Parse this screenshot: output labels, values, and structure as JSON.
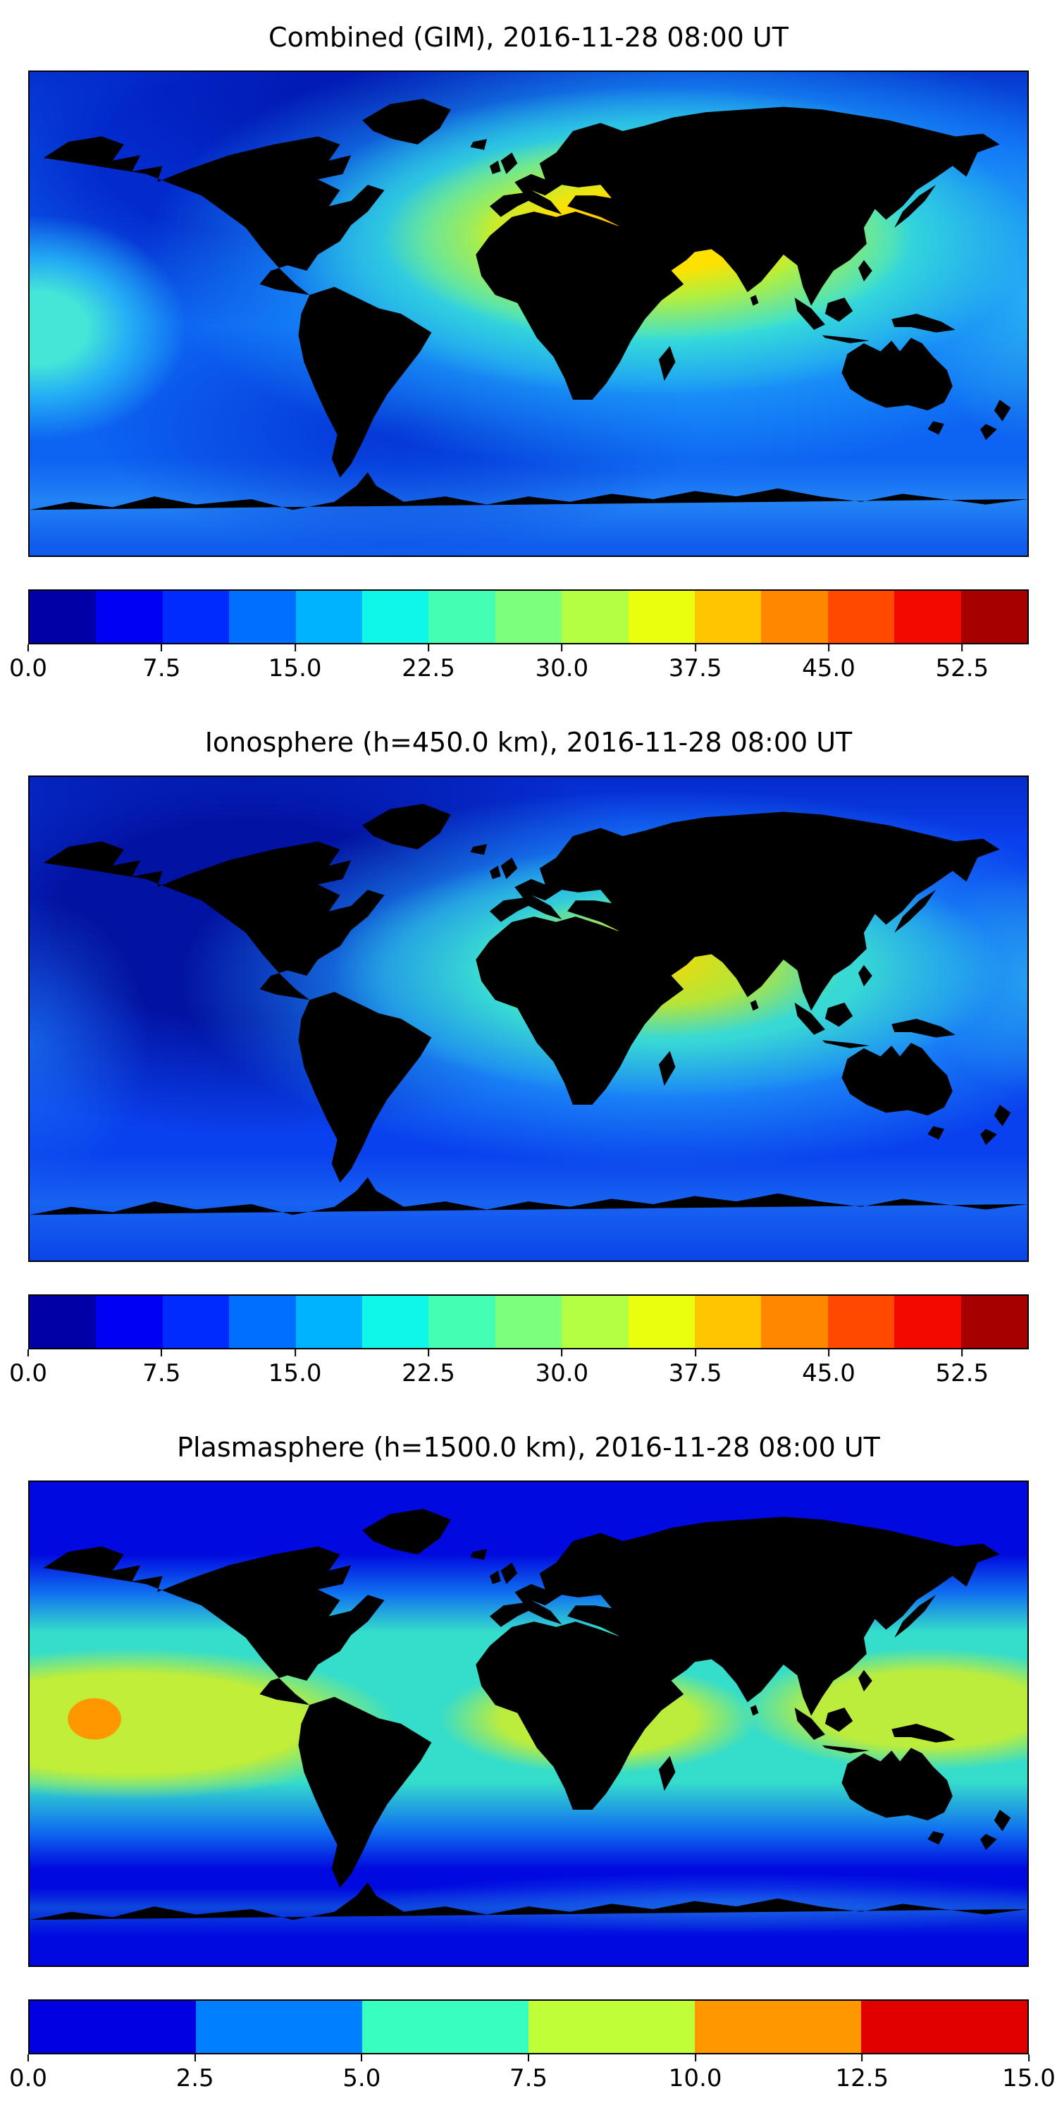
{
  "figure": {
    "background": "#ffffff",
    "text_color": "#000000",
    "colormap": "jet"
  },
  "chart_data": [
    {
      "type": "heatmap",
      "title": "Combined (GIM), 2016-11-28 08:00 UT",
      "projection": "equirectangular world map with coastlines",
      "colormap": "jet",
      "vmin": 0,
      "vmax": 56.25,
      "colorbar_ticks": [
        0.0,
        7.5,
        15.0,
        22.5,
        30.0,
        37.5,
        45.0,
        52.5
      ],
      "colorbar_colors": [
        "#0000a6",
        "#0000f3",
        "#002bff",
        "#006eff",
        "#00b3ff",
        "#0ef7e9",
        "#44ffb3",
        "#7cff7c",
        "#b3ff44",
        "#e9ff0e",
        "#ffc600",
        "#ff8700",
        "#ff4900",
        "#f40900",
        "#a60000"
      ],
      "features": [
        {
          "region": "South Asia / Southeast Asia (daytime)",
          "approx_value_range": [
            30,
            41
          ],
          "appearance": "yellow-orange maximum elongated east-west over India, Indochina and the Maritime Continent"
        },
        {
          "region": "equatorial central Pacific (left map edge)",
          "approx_value_range": [
            15,
            22.5
          ],
          "appearance": "cyan enhancement"
        },
        {
          "region": "North America / Arctic / North Atlantic (nightside)",
          "approx_value_range": [
            0,
            7.5
          ],
          "appearance": "dark blue minimum"
        },
        {
          "region": "southern mid-latitude ocean",
          "approx_value_range": [
            7.5,
            15
          ],
          "appearance": "blue with lighter band near 60S"
        }
      ]
    },
    {
      "type": "heatmap",
      "title": "Ionosphere  (h=450.0 km), 2016-11-28 08:00 UT",
      "projection": "equirectangular world map with coastlines",
      "colormap": "jet",
      "vmin": 0,
      "vmax": 56.25,
      "colorbar_ticks": [
        0.0,
        7.5,
        15.0,
        22.5,
        30.0,
        37.5,
        45.0,
        52.5
      ],
      "colorbar_colors": [
        "#0000a6",
        "#0000f3",
        "#002bff",
        "#006eff",
        "#00b3ff",
        "#0ef7e9",
        "#44ffb3",
        "#7cff7c",
        "#b3ff44",
        "#e9ff0e",
        "#ffc600",
        "#ff8700",
        "#ff4900",
        "#f40900",
        "#a60000"
      ],
      "features": [
        {
          "region": "South Asia / Southeast Asia (daytime)",
          "approx_value_range": [
            22.5,
            34
          ],
          "appearance": "yellow-green maximum, weaker than the combined map"
        },
        {
          "region": "Americas and Atlantic (nightside)",
          "approx_value_range": [
            0,
            7.5
          ],
          "appearance": "very dark blue minimum"
        },
        {
          "region": "western Pacific toward Australia",
          "approx_value_range": [
            11,
            19
          ],
          "appearance": "cyan halo extending southeast of the maximum"
        }
      ]
    },
    {
      "type": "heatmap",
      "title": "Plasmasphere (h=1500.0 km), 2016-11-28 08:00 UT",
      "projection": "equirectangular world map with coastlines",
      "colormap": "jet",
      "vmin": 0,
      "vmax": 15,
      "colorbar_ticks": [
        0.0,
        2.5,
        5.0,
        7.5,
        10.0,
        12.5,
        15.0
      ],
      "colorbar_colors": [
        "#0000e0",
        "#0080ff",
        "#37ffc0",
        "#c0ff37",
        "#ff9700",
        "#e00000"
      ],
      "features": [
        {
          "region": "equatorial band (all longitudes)",
          "approx_value_range": [
            5,
            7.5
          ],
          "appearance": "turquoise band along the low latitudes"
        },
        {
          "region": "central Pacific, Africa/Indian Ocean and western Pacific lobes",
          "approx_value_range": [
            7.5,
            10
          ],
          "appearance": "yellow-green lobes within the equatorial band"
        },
        {
          "region": "central Pacific spot near 165W",
          "approx_value_range": [
            10,
            12.5
          ],
          "appearance": "small orange localized maximum"
        },
        {
          "region": "middle and high latitudes",
          "approx_value_range": [
            0,
            2.5
          ],
          "appearance": "dark blue"
        }
      ]
    }
  ]
}
